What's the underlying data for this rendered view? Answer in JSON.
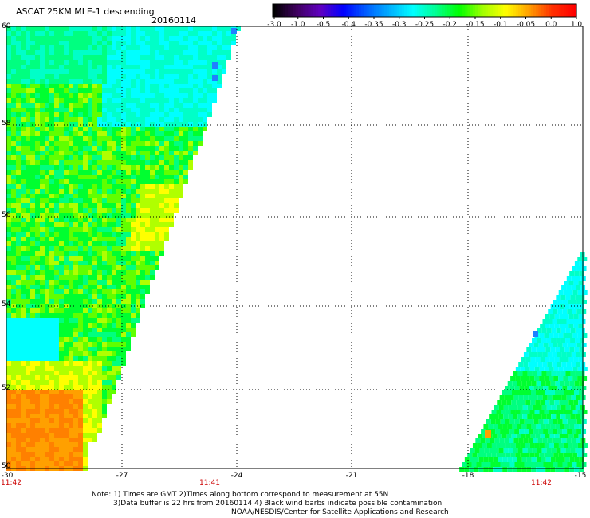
{
  "header": {
    "title": "ASCAT 25KM MLE-1 descending",
    "date": "20160114"
  },
  "colorbar": {
    "labels": [
      "-3.0",
      "-1.0",
      "-0.5",
      "-0.4",
      "-0.35",
      "-0.3",
      "-0.25",
      "-0.2",
      "-0.15",
      "-0.1",
      "-0.05",
      "0.0",
      "1.0"
    ],
    "colors": [
      "#000000",
      "#400060",
      "#6000c0",
      "#0000ff",
      "#0060ff",
      "#00b0ff",
      "#00ffff",
      "#00ff90",
      "#00ff00",
      "#a0ff00",
      "#ffff00",
      "#ffa000",
      "#ff3000",
      "#ff0000"
    ]
  },
  "map": {
    "lon_range": [
      -30,
      -15
    ],
    "lat_range": [
      50,
      60
    ],
    "lon_ticks": [
      "-30",
      "-27",
      "-24",
      "-21",
      "-18",
      "-15"
    ],
    "lat_ticks": [
      "60",
      "58",
      "56",
      "54",
      "52",
      "50"
    ],
    "time_labels": [
      "11:42",
      "11:41",
      "11:42"
    ]
  },
  "notes": {
    "line1": "Note: 1) Times are GMT 2)Times along bottom correspond to measurement at 55N",
    "line2": "3)Data buffer is 22 hrs from 20160114 4) Black wind barbs indicate possible contamination",
    "line3": "NOAA/NESDIS/Center for Satellite Applications and Research"
  }
}
